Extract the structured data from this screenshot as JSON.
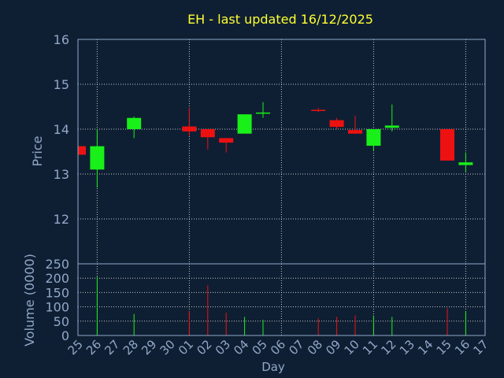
{
  "chart_data": {
    "type": "candlestick",
    "title": "EH - last updated 16/12/2025",
    "ylabel": "Price",
    "volume_label": "Volume (0000)",
    "xlabel": "Day",
    "ylim": [
      11,
      16
    ],
    "yticks": [
      12,
      13,
      14,
      15,
      16
    ],
    "vol_ylim": [
      0,
      250
    ],
    "vol_yticks": [
      0,
      50,
      100,
      150,
      200,
      250
    ],
    "grid": true,
    "colors": {
      "background": "#0f1f33",
      "up": "#19f019",
      "down": "#ee1111",
      "title": "#ffff33",
      "axis_text": "#8fa8c8",
      "frame": "#8fa8c8",
      "grid": "#ffffff"
    },
    "days": [
      "25",
      "26",
      "27",
      "28",
      "29",
      "30",
      "01",
      "02",
      "03",
      "04",
      "05",
      "06",
      "07",
      "08",
      "09",
      "10",
      "11",
      "12",
      "13",
      "14",
      "15",
      "16",
      "17"
    ],
    "candles": [
      {
        "day": "25",
        "open": 13.62,
        "high": 13.62,
        "low": 13.43,
        "close": 13.43,
        "volume": 0
      },
      {
        "day": "26",
        "open": 13.1,
        "high": 14.0,
        "low": 12.7,
        "close": 13.62,
        "volume": 205
      },
      {
        "day": "28",
        "open": 14.0,
        "high": 14.28,
        "low": 13.8,
        "close": 14.25,
        "volume": 75
      },
      {
        "day": "01",
        "open": 14.06,
        "high": 14.48,
        "low": 13.85,
        "close": 13.95,
        "volume": 85
      },
      {
        "day": "02",
        "open": 14.0,
        "high": 14.0,
        "low": 13.55,
        "close": 13.82,
        "volume": 175
      },
      {
        "day": "03",
        "open": 13.8,
        "high": 13.8,
        "low": 13.48,
        "close": 13.7,
        "volume": 80
      },
      {
        "day": "04",
        "open": 13.9,
        "high": 14.33,
        "low": 13.9,
        "close": 14.33,
        "volume": 65
      },
      {
        "day": "05",
        "open": 14.35,
        "high": 14.6,
        "low": 14.25,
        "close": 14.37,
        "volume": 55
      },
      {
        "day": "08",
        "open": 14.43,
        "high": 14.48,
        "low": 14.38,
        "close": 14.41,
        "volume": 60
      },
      {
        "day": "09",
        "open": 14.2,
        "high": 14.25,
        "low": 14.0,
        "close": 14.05,
        "volume": 65
      },
      {
        "day": "10",
        "open": 13.98,
        "high": 14.3,
        "low": 13.9,
        "close": 13.9,
        "volume": 70
      },
      {
        "day": "11",
        "open": 13.63,
        "high": 14.0,
        "low": 13.52,
        "close": 14.0,
        "volume": 70
      },
      {
        "day": "12",
        "open": 14.03,
        "high": 14.55,
        "low": 13.95,
        "close": 14.08,
        "volume": 65
      },
      {
        "day": "15",
        "open": 14.0,
        "high": 14.0,
        "low": 13.3,
        "close": 13.3,
        "volume": 95
      },
      {
        "day": "16",
        "open": 13.2,
        "high": 13.48,
        "low": 13.05,
        "close": 13.26,
        "volume": 85
      }
    ]
  }
}
